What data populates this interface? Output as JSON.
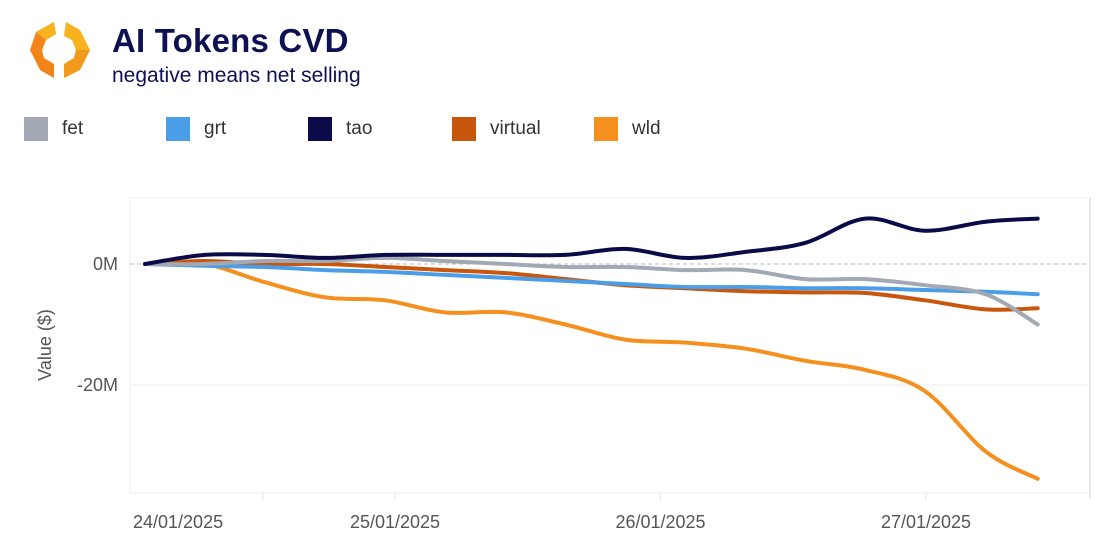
{
  "header": {
    "logo_icon": "hexagon-brackets-logo",
    "title": "AI Tokens CVD",
    "subtitle": "negative means net selling"
  },
  "colors": {
    "title": "#0d1152",
    "logo_light": "#f7b21d",
    "logo_dark": "#f2841a"
  },
  "chart_data": {
    "type": "line",
    "title": "AI Tokens CVD",
    "subtitle": "negative means net selling",
    "xlabel": "",
    "ylabel": "Value ($)",
    "ylim": [
      -38,
      11
    ],
    "yticks": [
      {
        "value": 0,
        "label": "0M"
      },
      {
        "value": -20,
        "label": "-20M"
      }
    ],
    "xlim_hours": [
      0,
      96
    ],
    "xticks": [
      {
        "hours": 0,
        "label": "24/01/2025"
      },
      {
        "hours": 24,
        "label": "25/01/2025"
      },
      {
        "hours": 48,
        "label": "26/01/2025"
      },
      {
        "hours": 72,
        "label": "27/01/2025"
      }
    ],
    "x_hours": [
      1.4,
      6.8,
      12.2,
      17.7,
      23.1,
      28.5,
      34.0,
      39.4,
      44.8,
      50.2,
      55.7,
      61.1,
      66.5,
      71.9,
      77.4,
      82.1
    ],
    "grid": true,
    "legend_position": "top-left",
    "series": [
      {
        "name": "fet",
        "color": "#a2a9b4",
        "values": [
          0,
          0,
          0.5,
          0.5,
          1,
          0.5,
          0,
          -0.5,
          -0.5,
          -1,
          -1,
          -2.5,
          -2.5,
          -3.5,
          -5,
          -10
        ]
      },
      {
        "name": "grt",
        "color": "#4a9ee8",
        "values": [
          0,
          -0.3,
          -0.5,
          -1,
          -1.3,
          -1.8,
          -2.3,
          -2.8,
          -3.3,
          -3.8,
          -3.8,
          -4,
          -4,
          -4.3,
          -4.6,
          -5
        ]
      },
      {
        "name": "tao",
        "color": "#0b0b4a",
        "values": [
          0,
          1.5,
          1.5,
          1,
          1.5,
          1.5,
          1.5,
          1.5,
          2.5,
          1,
          2,
          3.5,
          7.5,
          5.5,
          7,
          7.5
        ]
      },
      {
        "name": "virtual",
        "color": "#c8570d",
        "values": [
          0,
          0.5,
          0,
          0,
          -0.5,
          -1,
          -1.5,
          -2.5,
          -3.5,
          -4,
          -4.5,
          -4.7,
          -4.8,
          -6,
          -7.5,
          -7.3
        ]
      },
      {
        "name": "wld",
        "color": "#f5901e",
        "values": [
          0,
          0,
          -3,
          -5.5,
          -6,
          -8,
          -8,
          -10,
          -12.5,
          -13,
          -14,
          -16,
          -17.5,
          -21,
          -31,
          -35.5
        ]
      }
    ]
  }
}
